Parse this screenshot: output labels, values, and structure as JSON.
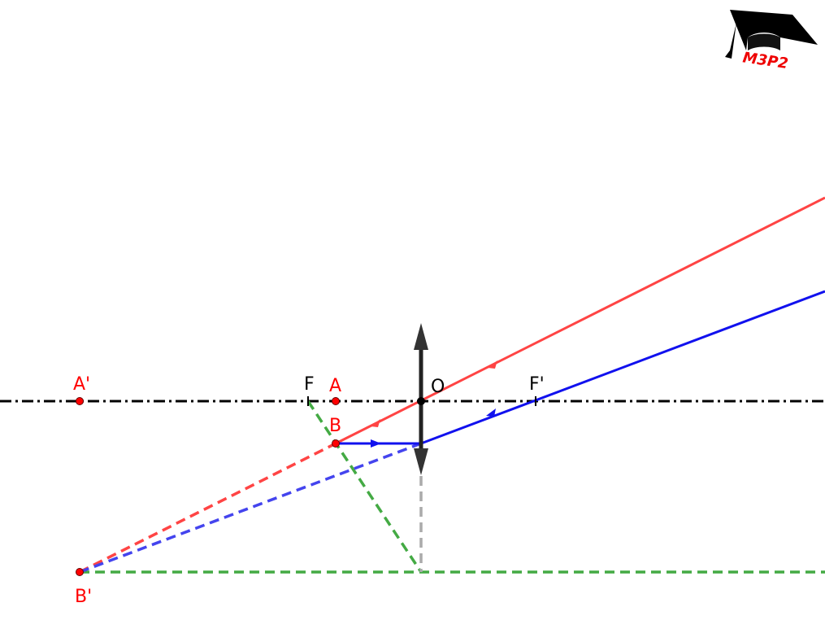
{
  "labels": {
    "A_prime": "A'",
    "B_prime": "B'",
    "F": "F",
    "F_prime": "F'",
    "O": "O",
    "A": "A",
    "B": "B"
  },
  "logo": {
    "text": "M3P2"
  },
  "colors": {
    "axis": "#000000",
    "lens": "#222222",
    "ray_red": "#ff4444",
    "ray_blue": "#2222ee",
    "construction_green": "#44aa44",
    "construction_gray": "#aaaaaa",
    "point": "#ff0000",
    "point_label": "#ff0000"
  }
}
